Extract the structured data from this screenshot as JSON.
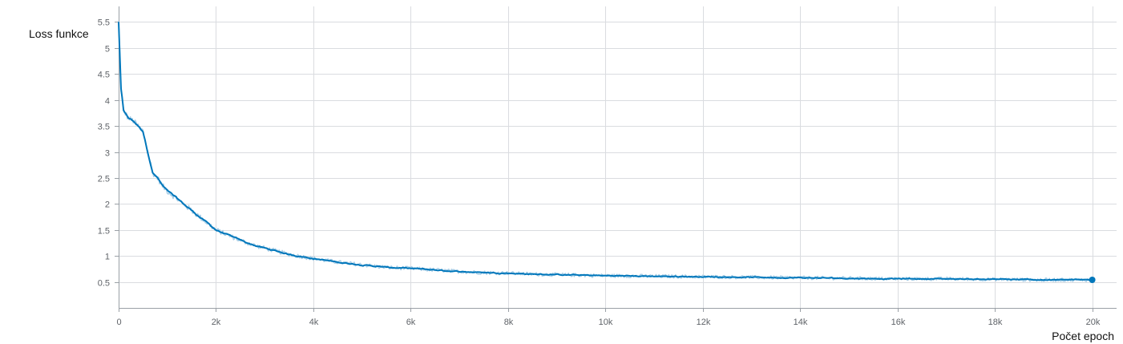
{
  "chart_data": {
    "type": "line",
    "xlabel": "Počet epoch",
    "ylabel": "Loss funkce",
    "xlim": [
      0,
      20500
    ],
    "ylim": [
      0,
      5.8
    ],
    "x_ticks": [
      0,
      2000,
      4000,
      6000,
      8000,
      10000,
      12000,
      14000,
      16000,
      18000,
      20000
    ],
    "x_tick_labels": [
      "0",
      "2k",
      "4k",
      "6k",
      "8k",
      "10k",
      "12k",
      "14k",
      "16k",
      "18k",
      "20k"
    ],
    "y_ticks": [
      0.5,
      1,
      1.5,
      2,
      2.5,
      3,
      3.5,
      4,
      4.5,
      5,
      5.5
    ],
    "y_tick_labels": [
      "0.5",
      "1",
      "1.5",
      "2",
      "2.5",
      "3",
      "3.5",
      "4",
      "4.5",
      "5",
      "5.5"
    ],
    "grid": true,
    "series": [
      {
        "color": "#0077bb",
        "raw_color": "#a7cde6",
        "x": [
          0,
          50,
          100,
          200,
          300,
          400,
          500,
          600,
          700,
          800,
          900,
          1000,
          1200,
          1400,
          1600,
          1800,
          2000,
          2200,
          2500,
          2800,
          3000,
          3500,
          4000,
          4500,
          5000,
          5500,
          6000,
          6500,
          7000,
          7500,
          8000,
          8500,
          9000,
          9500,
          10000,
          11000,
          12000,
          13000,
          14000,
          15000,
          16000,
          17000,
          18000,
          19000,
          20000
        ],
        "y": [
          5.5,
          4.2,
          3.8,
          3.65,
          3.6,
          3.5,
          3.4,
          3.0,
          2.6,
          2.5,
          2.35,
          2.25,
          2.1,
          1.95,
          1.8,
          1.65,
          1.5,
          1.42,
          1.3,
          1.2,
          1.15,
          1.03,
          0.95,
          0.88,
          0.83,
          0.78,
          0.76,
          0.73,
          0.7,
          0.68,
          0.67,
          0.65,
          0.64,
          0.63,
          0.62,
          0.61,
          0.6,
          0.59,
          0.58,
          0.57,
          0.56,
          0.56,
          0.55,
          0.54,
          0.54
        ]
      }
    ]
  }
}
